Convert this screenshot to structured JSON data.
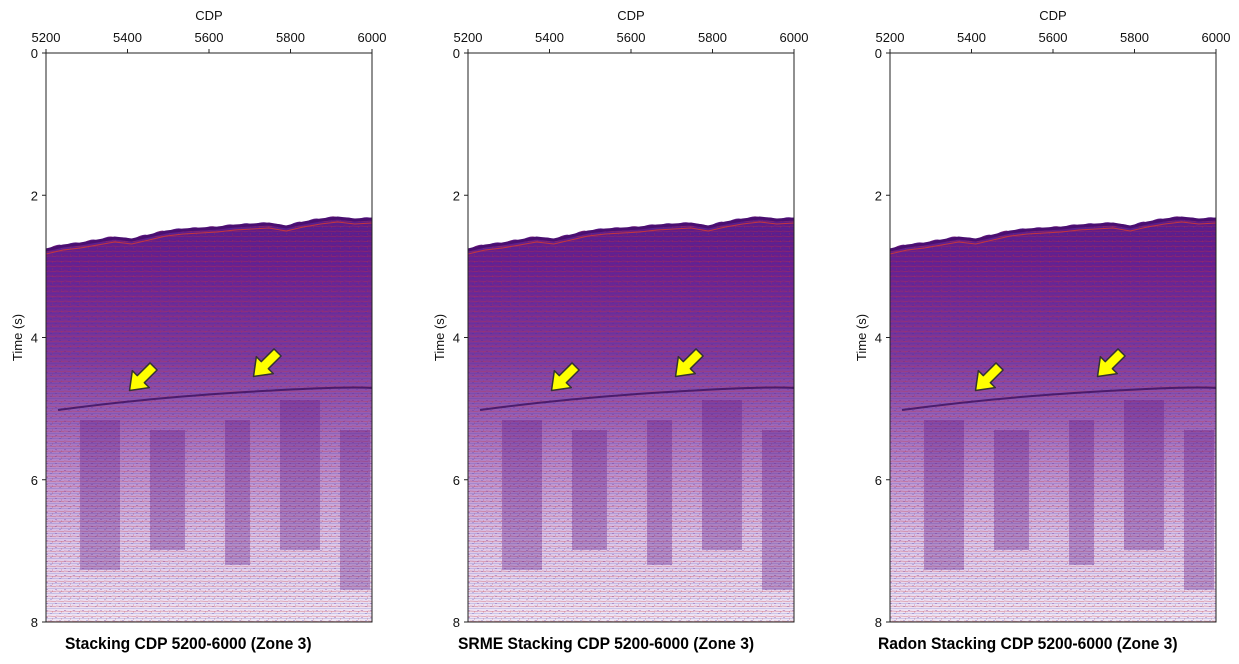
{
  "x_axis_label": "CDP",
  "y_axis_label": "Time (s)",
  "x_ticks": [
    "5200",
    "5400",
    "5600",
    "5800",
    "6000"
  ],
  "y_ticks": [
    "0",
    "2",
    "4",
    "6",
    "8"
  ],
  "colors": {
    "section_dark": "#6a1f8e",
    "section_light": "#c79fd8",
    "arrow_fill": "#ffff00",
    "arrow_stroke": "#333333"
  },
  "panels": [
    {
      "title": "Stacking CDP 5200-6000 (Zone 3)",
      "arrow_icons": [
        "yellow-arrow-icon",
        "yellow-arrow-icon"
      ]
    },
    {
      "title": "SRME Stacking CDP 5200-6000 (Zone 3)",
      "arrow_icons": [
        "yellow-arrow-icon",
        "yellow-arrow-icon"
      ]
    },
    {
      "title": "Radon Stacking CDP 5200-6000 (Zone 3)",
      "arrow_icons": [
        "yellow-arrow-icon",
        "yellow-arrow-icon"
      ]
    }
  ]
}
